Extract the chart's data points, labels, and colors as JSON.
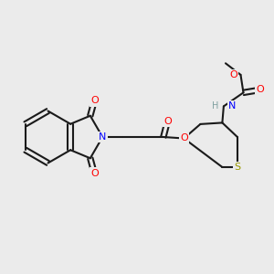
{
  "bg_color": "#ebebeb",
  "bond_color": "#1a1a1a",
  "bond_lw": 1.5,
  "atom_colors": {
    "N": "#0000ff",
    "O": "#ff0000",
    "S": "#999900",
    "H": "#7fa0a0",
    "C": "#1a1a1a"
  },
  "font_size": 7.5,
  "fig_size": [
    3.0,
    3.0
  ],
  "dpi": 100
}
